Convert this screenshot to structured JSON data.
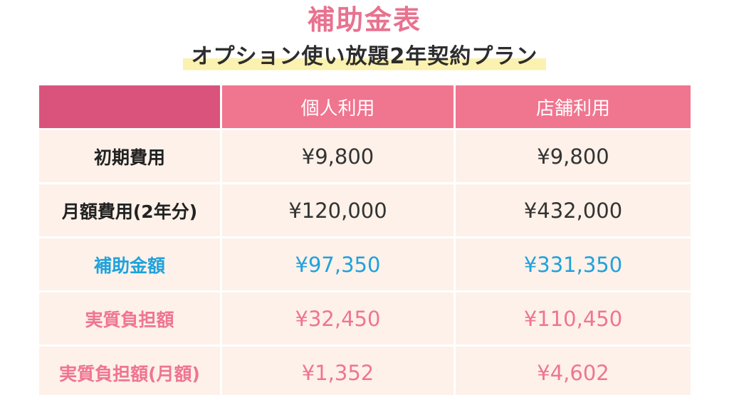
{
  "title": "補助金表",
  "subtitle": "オプション使い放題2年契約プラン",
  "table": {
    "headers": [
      "",
      "個人利用",
      "店舗利用"
    ],
    "rows": [
      {
        "label": "初期費用",
        "personal": "¥9,800",
        "store": "¥9,800",
        "style": "normal"
      },
      {
        "label": "月額費用(2年分)",
        "personal": "¥120,000",
        "store": "¥432,000",
        "style": "normal"
      },
      {
        "label": "補助金額",
        "personal": "¥97,350",
        "store": "¥331,350",
        "style": "blue"
      },
      {
        "label": "実質負担額",
        "personal": "¥32,450",
        "store": "¥110,450",
        "style": "pink"
      },
      {
        "label": "実質負担額(月額)",
        "personal": "¥1,352",
        "store": "¥4,602",
        "style": "pink"
      }
    ]
  },
  "colors": {
    "title": "#e8728f",
    "header": "#f0758f",
    "header_corner": "#d9537d",
    "cell_bg": "#fdf1e9",
    "subsidy": "#1fa2dc",
    "burden": "#ef7592",
    "highlight": "#fbf1b0"
  }
}
